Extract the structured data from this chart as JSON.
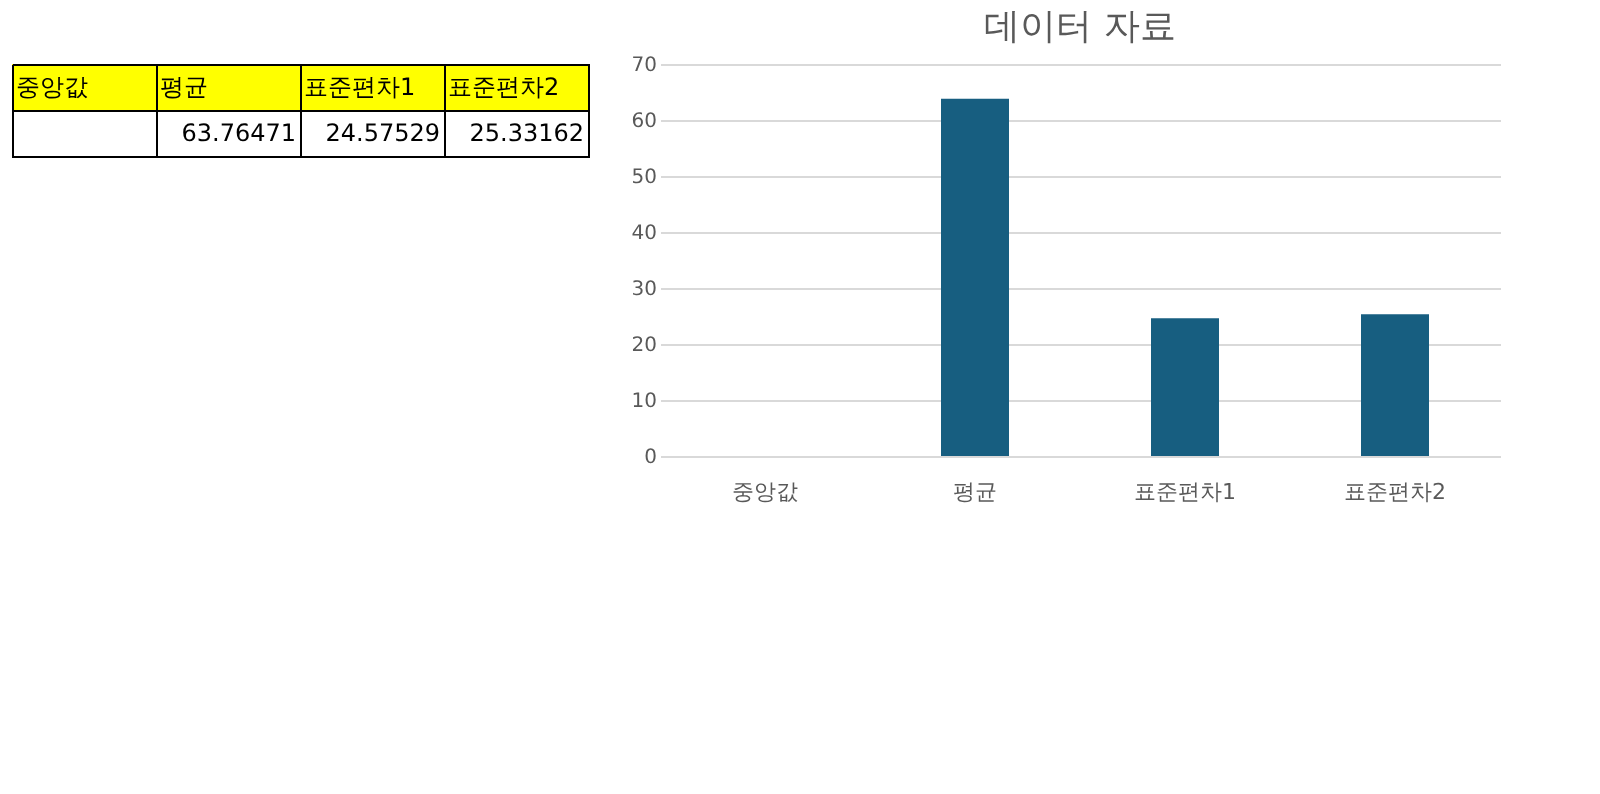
{
  "chart_data": [
    {
      "type": "other",
      "annotations": [
        "중앙값",
        "평균",
        "표준편차1",
        "표준편차2",
        "63.76471",
        "24.57529",
        "25.33162"
      ]
    },
    {
      "type": "bar",
      "title": "데이터 자료",
      "categories": [
        "중앙값",
        "평균",
        "표준편차1",
        "표준편차2"
      ],
      "values": [
        null,
        63.8,
        24.6,
        25.3
      ],
      "color": "#175e80",
      "ylim": [
        0,
        70
      ],
      "yticks": [
        0,
        10,
        20,
        30,
        40,
        50,
        60,
        70
      ],
      "grid": "y",
      "legend": false
    }
  ]
}
